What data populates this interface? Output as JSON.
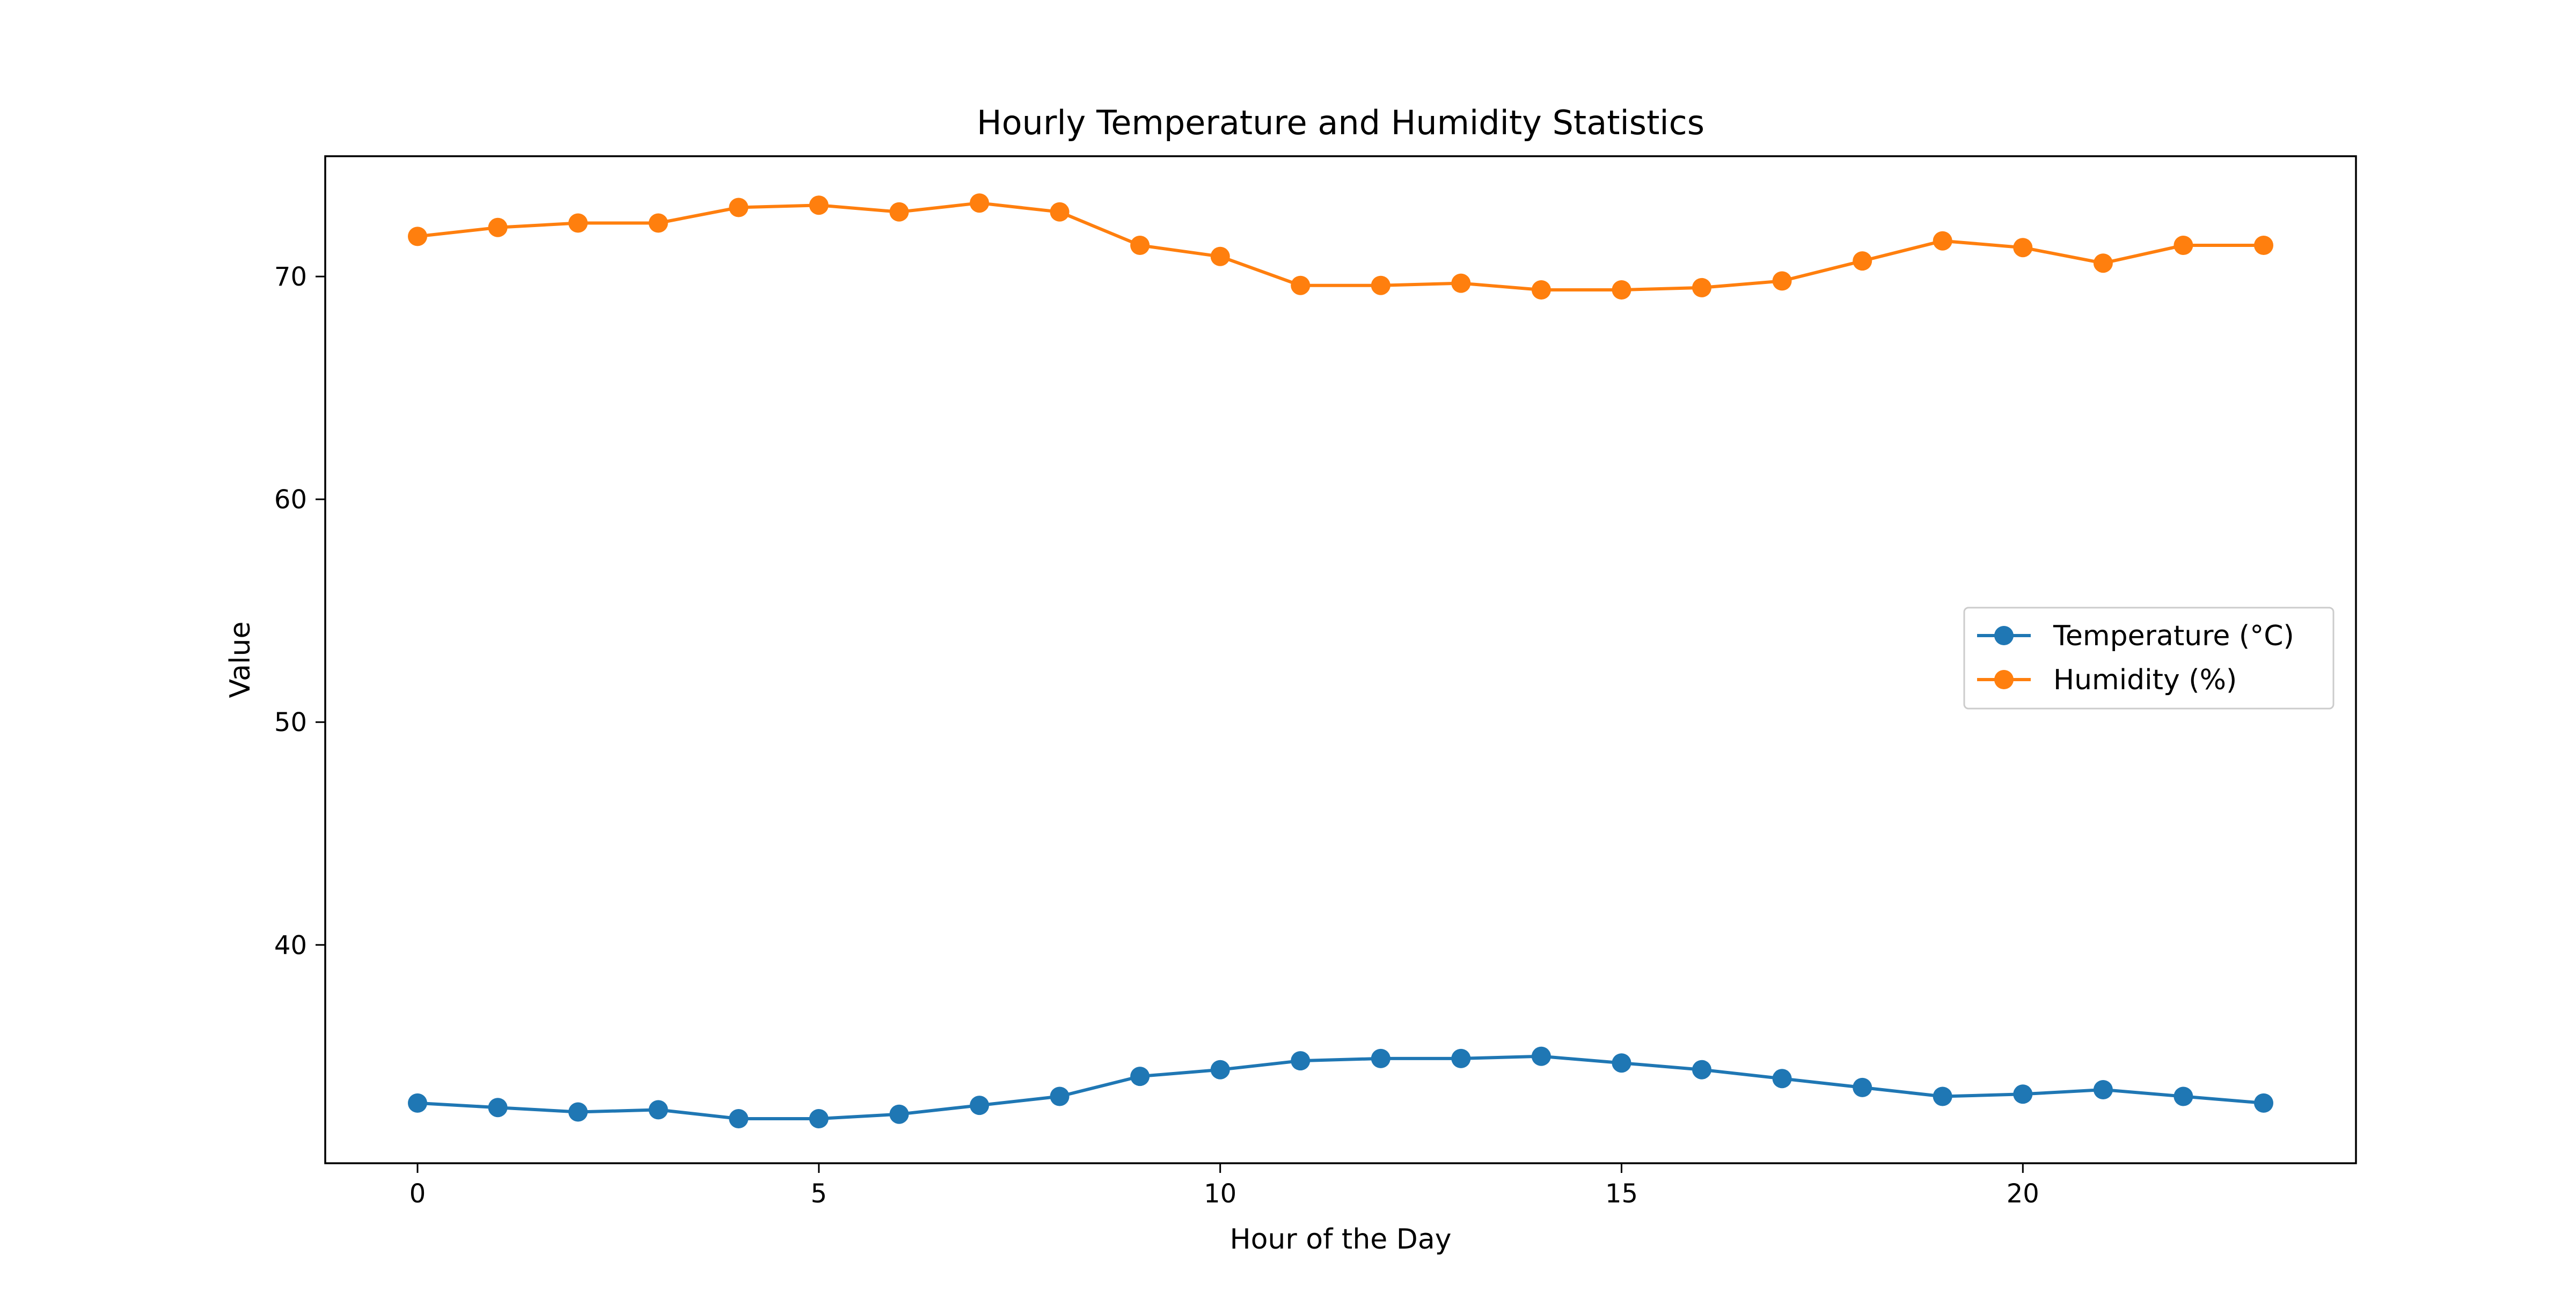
{
  "chart_data": {
    "type": "line",
    "title": "Hourly Temperature and Humidity Statistics",
    "xlabel": "Hour of the Day",
    "ylabel": "Value",
    "x": [
      0,
      1,
      2,
      3,
      4,
      5,
      6,
      7,
      8,
      9,
      10,
      11,
      12,
      13,
      14,
      15,
      16,
      17,
      18,
      19,
      20,
      21,
      22,
      23
    ],
    "xlim": [
      -1.15,
      24.15
    ],
    "ylim": [
      30.2,
      75.4
    ],
    "xticks": [
      0,
      5,
      10,
      15,
      20
    ],
    "yticks": [
      40,
      50,
      60,
      70
    ],
    "grid": false,
    "legend_position": "center-right",
    "series": [
      {
        "name": "Temperature (°C)",
        "color": "#1f77b4",
        "marker": "circle",
        "values": [
          32.9,
          32.7,
          32.5,
          32.6,
          32.2,
          32.2,
          32.4,
          32.8,
          33.2,
          34.1,
          34.4,
          34.8,
          34.9,
          34.9,
          35.0,
          34.7,
          34.4,
          34.0,
          33.6,
          33.2,
          33.3,
          33.5,
          33.2,
          32.9
        ]
      },
      {
        "name": "Humidity (%)",
        "color": "#ff7f0e",
        "marker": "circle",
        "values": [
          71.8,
          72.2,
          72.4,
          72.4,
          73.1,
          73.2,
          72.9,
          73.3,
          72.9,
          71.4,
          70.9,
          69.6,
          69.6,
          69.7,
          69.4,
          69.4,
          69.5,
          69.8,
          70.7,
          71.6,
          71.3,
          70.6,
          71.4,
          71.4
        ]
      }
    ]
  }
}
